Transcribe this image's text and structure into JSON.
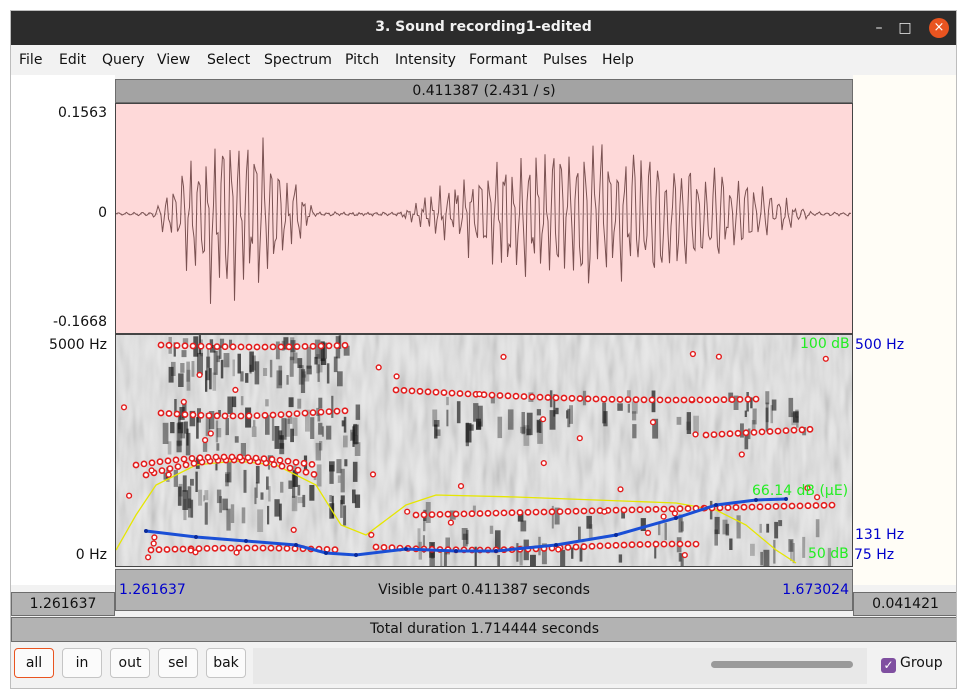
{
  "window": {
    "title": "3. Sound recording1-edited",
    "controls": {
      "minimize": "–",
      "maximize": "□",
      "close": "×"
    }
  },
  "menu": [
    "File",
    "Edit",
    "Query",
    "View",
    "Select",
    "Spectrum",
    "Pitch",
    "Intensity",
    "Formant",
    "Pulses",
    "Help"
  ],
  "selection_label": "0.411387 (2.431 / s)",
  "waveform": {
    "y_max": "0.1563",
    "y_zero": "0",
    "y_min": "-0.1668"
  },
  "spectrogram": {
    "freq_top": "5000 Hz",
    "freq_bottom": "0 Hz",
    "intensity_top": "100 dB",
    "intensity_current": "66.14 dB (μE)",
    "intensity_bottom": "50 dB",
    "pitch_top": "500 Hz",
    "pitch_current": "131 Hz",
    "pitch_bottom": "75 Hz"
  },
  "visible": {
    "start": "1.261637",
    "end": "1.673024",
    "label": "Visible part 0.411387 seconds"
  },
  "left_time": "1.261637",
  "right_time": "0.041421",
  "total": "Total duration 1.714444 seconds",
  "buttons": [
    "all",
    "in",
    "out",
    "sel",
    "bak"
  ],
  "group_label": "Group",
  "colors": {
    "waveform_bg": "#fed9d9",
    "waveform_line": "#7a5252",
    "pitch": "#1a4fd6",
    "intensity": "#e6e600",
    "formant": "#e31c1c",
    "db_text": "#22ee22",
    "hz_text": "#0000cc",
    "accent": "#e95420"
  }
}
